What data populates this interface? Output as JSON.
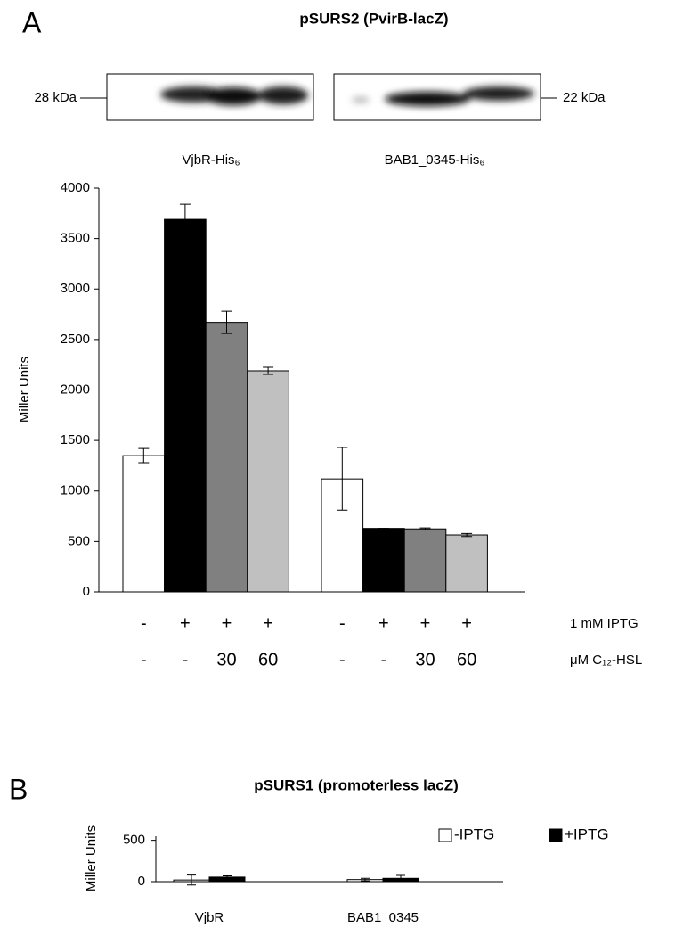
{
  "chart_data": [
    {
      "type": "bar",
      "panel": "A",
      "title": "pSURS2 (PvirB-lacZ)",
      "ylabel": "Miller Units",
      "ylim": [
        0,
        4000
      ],
      "yticks": [
        0,
        500,
        1000,
        1500,
        2000,
        2500,
        3000,
        3500,
        4000
      ],
      "blots": [
        {
          "marker": "28 kDa",
          "caption": "VjbR-His₆"
        },
        {
          "marker": "22 kDa",
          "caption": "BAB1_0345-His₆"
        }
      ],
      "series": [
        {
          "color": "#ffffff",
          "values": [
            1350,
            1120
          ],
          "errors": [
            70,
            310
          ]
        },
        {
          "color": "#000000",
          "values": [
            3690,
            630
          ],
          "errors": [
            150,
            0
          ]
        },
        {
          "color": "#808080",
          "values": [
            2670,
            625
          ],
          "errors": [
            110,
            10
          ]
        },
        {
          "color": "#c0c0c0",
          "values": [
            2190,
            565
          ],
          "errors": [
            35,
            15
          ]
        }
      ],
      "conditions": [
        {
          "label": "1 mM IPTG",
          "values": [
            "-",
            "+",
            "+",
            "+",
            "-",
            "+",
            "+",
            "+"
          ]
        },
        {
          "label": "μM C₁₂-HSL",
          "values": [
            "-",
            "-",
            "30",
            "60",
            "-",
            "-",
            "30",
            "60"
          ]
        }
      ]
    },
    {
      "type": "bar",
      "panel": "B",
      "title": "pSURS1 (promoterless lacZ)",
      "ylabel": "Miller Units",
      "ylim": [
        0,
        550
      ],
      "yticks": [
        0,
        500
      ],
      "categories": [
        "VjbR",
        "BAB1_0345"
      ],
      "legend": "top-right",
      "series": [
        {
          "name": "-IPTG",
          "color": "#ffffff",
          "values": [
            20,
            25
          ],
          "errors": [
            60,
            15
          ]
        },
        {
          "name": "+IPTG",
          "color": "#000000",
          "values": [
            55,
            40
          ],
          "errors": [
            15,
            35
          ]
        }
      ]
    }
  ]
}
